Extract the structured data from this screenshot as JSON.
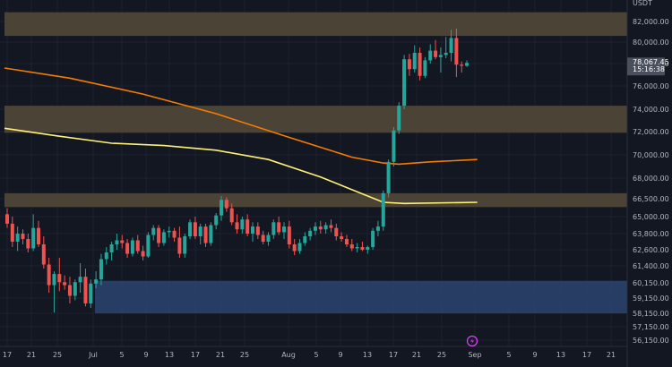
{
  "chart_data": {
    "type": "candlestick",
    "currency": "USDT",
    "y_ticks": [
      "82,000.00",
      "80,000.00",
      "78,000.00",
      "76,000.00",
      "74,000.00",
      "72,000.00",
      "70,000.00",
      "68,000.00",
      "66,500.00",
      "65,000.00",
      "63,800.00",
      "62,600.00",
      "61,400.00",
      "60,150.00",
      "59,150.00",
      "58,150.00",
      "57,150.00",
      "56,150.00"
    ],
    "x_ticks": [
      "17",
      "21",
      "25",
      "Jul",
      "5",
      "9",
      "13",
      "17",
      "21",
      "25",
      "Aug",
      "5",
      "9",
      "13",
      "17",
      "21",
      "25",
      "Sep",
      "5",
      "9",
      "13",
      "17",
      "21"
    ],
    "current_price": "78,067.45",
    "countdown": "15:16:38",
    "colors": {
      "up": "#26a69a",
      "down": "#ef5350",
      "zone": "#4e4638",
      "demand_zone": "#2b4470",
      "ma_orange": "#f57c00",
      "ma_yellow": "#fff176",
      "background": "#131722"
    },
    "zones": [
      {
        "name": "resistance-zone",
        "from": 80600,
        "to": 82900
      },
      {
        "name": "middle-zone",
        "from": 71900,
        "to": 74300
      },
      {
        "name": "support-zone",
        "from": 65800,
        "to": 66900
      },
      {
        "name": "demand-zone",
        "from": 58150,
        "to": 60300
      }
    ],
    "candles": [
      [
        65200,
        65700,
        64200,
        64500
      ],
      [
        64500,
        65000,
        62800,
        63200
      ],
      [
        63200,
        64300,
        62500,
        63800
      ],
      [
        63800,
        64100,
        63000,
        63400
      ],
      [
        63400,
        63800,
        62400,
        62700
      ],
      [
        62700,
        65200,
        62500,
        64200
      ],
      [
        64200,
        64700,
        62800,
        63000
      ],
      [
        63000,
        63600,
        61200,
        61500
      ],
      [
        61500,
        62000,
        59500,
        60000
      ],
      [
        60000,
        61000,
        58200,
        60800
      ],
      [
        60800,
        62000,
        59600,
        60200
      ],
      [
        60200,
        60700,
        59700,
        60000
      ],
      [
        60000,
        60600,
        58800,
        59300
      ],
      [
        59300,
        60400,
        59000,
        60200
      ],
      [
        60200,
        61600,
        59500,
        60600
      ],
      [
        60600,
        61200,
        58600,
        58800
      ],
      [
        58800,
        60400,
        58500,
        60100
      ],
      [
        60100,
        61000,
        59800,
        60400
      ],
      [
        60400,
        62300,
        60000,
        61900
      ],
      [
        61900,
        62800,
        61500,
        62400
      ],
      [
        62400,
        63200,
        61800,
        63000
      ],
      [
        63000,
        63800,
        62600,
        63300
      ],
      [
        63300,
        63700,
        62700,
        63100
      ],
      [
        63100,
        63400,
        62000,
        62300
      ],
      [
        62300,
        63500,
        62100,
        63300
      ],
      [
        63300,
        63700,
        62300,
        62500
      ],
      [
        62500,
        62900,
        61800,
        62100
      ],
      [
        62100,
        63900,
        62000,
        63700
      ],
      [
        63700,
        64400,
        63300,
        64200
      ],
      [
        64200,
        64400,
        62800,
        63100
      ],
      [
        63100,
        64100,
        62900,
        63900
      ],
      [
        63900,
        64300,
        63500,
        64000
      ],
      [
        64000,
        64200,
        63200,
        63500
      ],
      [
        63500,
        64300,
        62000,
        62300
      ],
      [
        62300,
        63800,
        62000,
        63600
      ],
      [
        63600,
        64800,
        63400,
        64600
      ],
      [
        64600,
        65000,
        63400,
        63600
      ],
      [
        63600,
        64500,
        63000,
        64300
      ],
      [
        64300,
        64500,
        62800,
        63100
      ],
      [
        63100,
        64600,
        62900,
        64400
      ],
      [
        64400,
        65300,
        64100,
        65100
      ],
      [
        65100,
        66700,
        64700,
        66400
      ],
      [
        66400,
        66600,
        65400,
        65700
      ],
      [
        65700,
        66100,
        64400,
        64600
      ],
      [
        64600,
        65200,
        63800,
        64100
      ],
      [
        64100,
        65000,
        63800,
        64800
      ],
      [
        64800,
        65200,
        63600,
        63800
      ],
      [
        63800,
        64600,
        63200,
        64300
      ],
      [
        64300,
        64600,
        63400,
        63700
      ],
      [
        63700,
        64000,
        63000,
        63200
      ],
      [
        63200,
        63900,
        62900,
        63700
      ],
      [
        63700,
        64800,
        63400,
        64600
      ],
      [
        64600,
        65000,
        63700,
        63900
      ],
      [
        63900,
        64600,
        63400,
        64300
      ],
      [
        64300,
        64700,
        62700,
        63000
      ],
      [
        63000,
        63400,
        62200,
        62500
      ],
      [
        62500,
        63400,
        62300,
        63100
      ],
      [
        63100,
        63900,
        62900,
        63600
      ],
      [
        63600,
        64200,
        63300,
        64000
      ],
      [
        64000,
        64600,
        63700,
        64300
      ],
      [
        64300,
        64700,
        63800,
        64100
      ],
      [
        64100,
        64600,
        63800,
        64400
      ],
      [
        64400,
        64800,
        63900,
        64200
      ],
      [
        64200,
        64500,
        63300,
        63600
      ],
      [
        63600,
        63900,
        63200,
        63400
      ],
      [
        63400,
        63700,
        62800,
        63000
      ],
      [
        63000,
        63400,
        62500,
        62700
      ],
      [
        62700,
        63100,
        62400,
        62800
      ],
      [
        62800,
        63200,
        62500,
        62600
      ],
      [
        62600,
        62900,
        62300,
        62800
      ],
      [
        62800,
        64200,
        62600,
        64000
      ],
      [
        64000,
        64700,
        63600,
        64300
      ],
      [
        64300,
        67100,
        64000,
        66900
      ],
      [
        66900,
        69600,
        66600,
        69400
      ],
      [
        69400,
        72400,
        69000,
        72100
      ],
      [
        72100,
        74600,
        71800,
        74300
      ],
      [
        74300,
        78800,
        74000,
        78400
      ],
      [
        78400,
        78900,
        76900,
        77500
      ],
      [
        77500,
        79700,
        77200,
        79000
      ],
      [
        79000,
        79500,
        76500,
        76900
      ],
      [
        76900,
        78600,
        76700,
        78300
      ],
      [
        78300,
        79800,
        78000,
        79200
      ],
      [
        79200,
        80200,
        78400,
        78600
      ],
      [
        78600,
        79500,
        77200,
        78800
      ],
      [
        78800,
        80500,
        78500,
        79000
      ],
      [
        79000,
        81200,
        78200,
        80400
      ],
      [
        80400,
        81300,
        76800,
        77900
      ],
      [
        77900,
        78200,
        77200,
        77800
      ],
      [
        77800,
        78300,
        77700,
        78067
      ]
    ],
    "ma_orange": [
      [
        0,
        77600
      ],
      [
        12,
        76700
      ],
      [
        26,
        75300
      ],
      [
        40,
        73600
      ],
      [
        54,
        71500
      ],
      [
        66,
        69800
      ],
      [
        72,
        69300
      ],
      [
        75,
        69200
      ],
      [
        81,
        69400
      ],
      [
        90,
        69600
      ]
    ],
    "ma_yellow": [
      [
        0,
        72300
      ],
      [
        10,
        71600
      ],
      [
        20,
        71000
      ],
      [
        30,
        70800
      ],
      [
        40,
        70400
      ],
      [
        50,
        69600
      ],
      [
        60,
        68100
      ],
      [
        67,
        67000
      ],
      [
        72,
        66200
      ],
      [
        76,
        66100
      ],
      [
        90,
        66200
      ]
    ]
  }
}
